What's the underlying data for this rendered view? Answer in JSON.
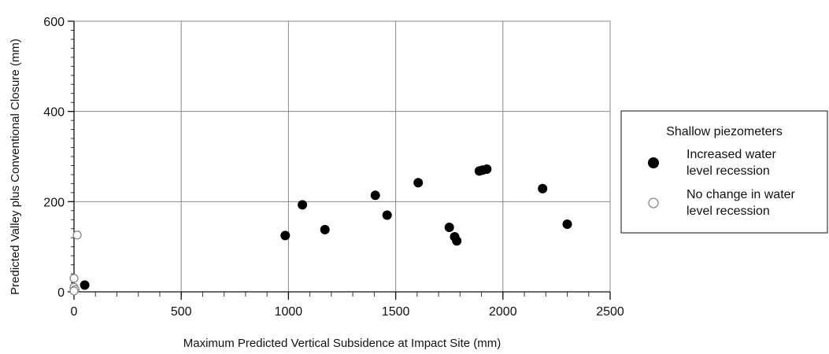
{
  "chart_data": {
    "type": "scatter",
    "xlabel": "Maximum Predicted Vertical Subsidence at Impact Site (mm)",
    "ylabel": "Predicted Valley plus Conventional Closure (mm)",
    "xlim": [
      0,
      2500
    ],
    "ylim": [
      0,
      600
    ],
    "x_ticks": [
      "0",
      "500",
      "1000",
      "1500",
      "2000",
      "2500"
    ],
    "y_ticks": [
      "0",
      "200",
      "400",
      "600"
    ],
    "grid": true,
    "legend": {
      "placement": "right",
      "title": "Shallow piezometers",
      "entries": [
        {
          "label_line1": "Increased water",
          "label_line2": "level recession"
        },
        {
          "label_line1": "No change in water",
          "label_line2": "level recession"
        }
      ]
    },
    "series": [
      {
        "marker": "filled-circle",
        "color": "#000000",
        "points": [
          [
            50,
            15
          ],
          [
            985,
            125
          ],
          [
            1065,
            193
          ],
          [
            1170,
            138
          ],
          [
            1405,
            214
          ],
          [
            1460,
            170
          ],
          [
            1605,
            242
          ],
          [
            1750,
            143
          ],
          [
            1775,
            122
          ],
          [
            1785,
            113
          ],
          [
            1890,
            268
          ],
          [
            1905,
            270
          ],
          [
            1925,
            272
          ],
          [
            2185,
            229
          ],
          [
            2300,
            150
          ]
        ]
      },
      {
        "marker": "open-circle",
        "color": "#888888",
        "points": [
          [
            15,
            126
          ],
          [
            0,
            30
          ],
          [
            0,
            10
          ],
          [
            5,
            5
          ],
          [
            0,
            2
          ]
        ]
      }
    ]
  }
}
